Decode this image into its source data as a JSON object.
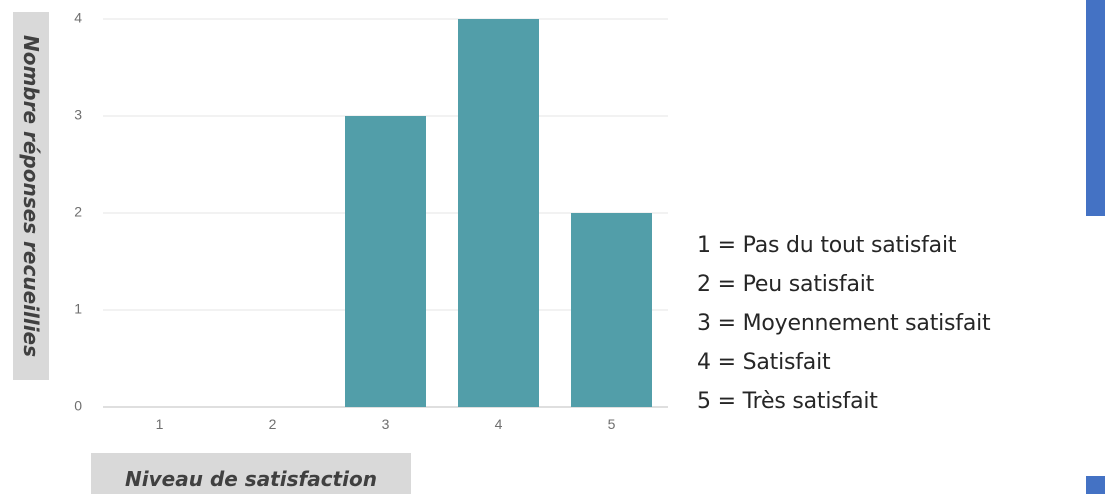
{
  "chart_data": {
    "type": "bar",
    "categories": [
      "1",
      "2",
      "3",
      "4",
      "5"
    ],
    "values": [
      0,
      0,
      3,
      4,
      2
    ],
    "ylim": [
      0,
      4
    ],
    "yticks": [
      "0",
      "1",
      "2",
      "3",
      "4"
    ],
    "xlabel": "Niveau  de satisfaction",
    "ylabel": "Nombre réponses recueillies",
    "bar_color": "#529ea9",
    "grid": true
  },
  "legend": [
    "1 = Pas du tout satisfait",
    "2 = Peu satisfait",
    "3 = Moyennement satisfait",
    "4 = Satisfait",
    "5 = Très satisfait"
  ],
  "colors": {
    "accent_bar": "#4472c4",
    "label_background": "#d9d9d9"
  }
}
